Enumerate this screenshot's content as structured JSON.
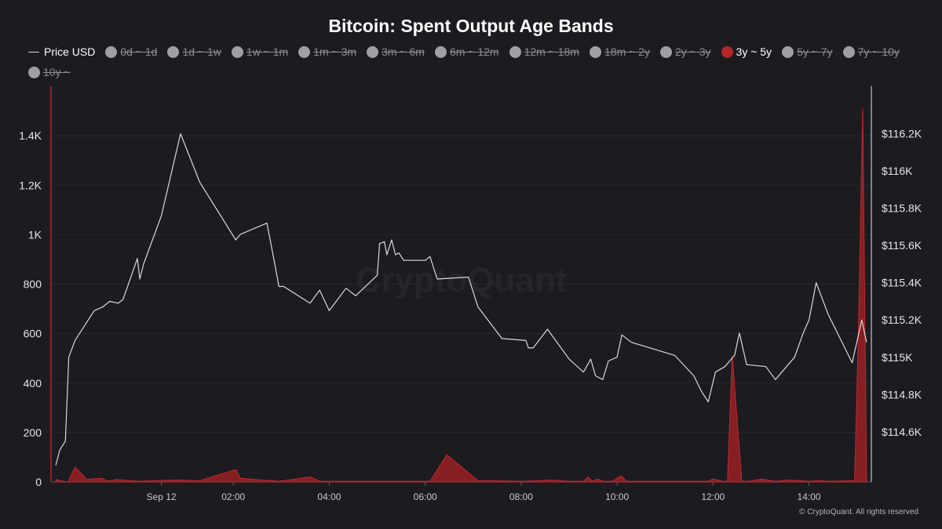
{
  "chart_data": {
    "type": "area",
    "title": "Bitcoin: Spent Output Age Bands",
    "watermark": "CryptoQuant",
    "copyright": "© CryptoQuant. All rights reserved",
    "legend_placement": "top",
    "grid": true,
    "x_ticks": [
      {
        "t": 0.5,
        "label": "Sep 12"
      },
      {
        "t": 2,
        "label": "02:00"
      },
      {
        "t": 4,
        "label": "04:00"
      },
      {
        "t": 6,
        "label": "06:00"
      },
      {
        "t": 8,
        "label": "08:00"
      },
      {
        "t": 10,
        "label": "10:00"
      },
      {
        "t": 12,
        "label": "12:00"
      },
      {
        "t": 14,
        "label": "14:00"
      }
    ],
    "xlim": [
      -1.8,
      15.3
    ],
    "y_left": {
      "ylim": [
        0,
        1600
      ],
      "ticks": [
        0,
        200,
        400,
        600,
        800,
        1000,
        1200,
        1400
      ],
      "tick_labels": [
        "0",
        "200",
        "400",
        "600",
        "800",
        "1K",
        "1.2K",
        "1.4K"
      ]
    },
    "y_right": {
      "ylim": [
        114330,
        116455
      ],
      "ticks": [
        114600,
        114800,
        115000,
        115200,
        115400,
        115600,
        115800,
        116000,
        116200
      ],
      "tick_labels": [
        "$114.6K",
        "$114.8K",
        "$115K",
        "$115.2K",
        "$115.4K",
        "$115.6K",
        "$115.8K",
        "$116K",
        "$116.2K"
      ]
    },
    "legend": [
      {
        "name": "Price USD",
        "marker": "line",
        "active": true,
        "color": "#d9d9d9"
      },
      {
        "name": "0d ~ 1d",
        "marker": "dot",
        "active": false,
        "color": "#a09fa6"
      },
      {
        "name": "1d ~ 1w",
        "marker": "dot",
        "active": false,
        "color": "#a09fa6"
      },
      {
        "name": "1w ~ 1m",
        "marker": "dot",
        "active": false,
        "color": "#a09fa6"
      },
      {
        "name": "1m ~ 3m",
        "marker": "dot",
        "active": false,
        "color": "#a09fa6"
      },
      {
        "name": "3m ~ 6m",
        "marker": "dot",
        "active": false,
        "color": "#a09fa6"
      },
      {
        "name": "6m ~ 12m",
        "marker": "dot",
        "active": false,
        "color": "#a09fa6"
      },
      {
        "name": "12m ~ 18m",
        "marker": "dot",
        "active": false,
        "color": "#a09fa6"
      },
      {
        "name": "18m ~ 2y",
        "marker": "dot",
        "active": false,
        "color": "#a09fa6"
      },
      {
        "name": "2y ~ 3y",
        "marker": "dot",
        "active": false,
        "color": "#a09fa6"
      },
      {
        "name": "3y ~ 5y",
        "marker": "dot",
        "active": true,
        "color": "#b3262b"
      },
      {
        "name": "5y ~ 7y",
        "marker": "dot",
        "active": false,
        "color": "#a09fa6"
      },
      {
        "name": "7y ~ 10y",
        "marker": "dot",
        "active": false,
        "color": "#a09fa6"
      },
      {
        "name": "10y ~",
        "marker": "dot",
        "active": false,
        "color": "#a09fa6"
      }
    ],
    "series": [
      {
        "name": "Price USD",
        "axis": "right",
        "color": "#d9d9d9",
        "x": [
          -1.7,
          -1.62,
          -1.5,
          -1.43,
          -1.3,
          -0.9,
          -0.72,
          -0.58,
          -0.4,
          -0.3,
          0.0,
          0.05,
          0.13,
          0.5,
          0.9,
          1.3,
          2.05,
          2.15,
          2.7,
          2.85,
          2.95,
          3.05,
          3.6,
          3.8,
          4.0,
          4.35,
          4.55,
          5.0,
          5.05,
          5.15,
          5.2,
          5.3,
          5.38,
          5.45,
          5.55,
          6.0,
          6.1,
          6.25,
          6.9,
          7.1,
          7.6,
          8.1,
          8.15,
          8.25,
          8.55,
          9.0,
          9.3,
          9.45,
          9.55,
          9.7,
          9.82,
          10.0,
          10.1,
          10.3,
          11.2,
          11.6,
          11.75,
          11.9,
          12.05,
          12.25,
          12.45,
          12.55,
          12.7,
          13.1,
          13.3,
          13.7,
          13.88,
          14.0,
          14.15,
          14.4,
          14.9,
          15.1,
          15.2
        ],
        "y": [
          114420,
          114500,
          114550,
          115000,
          115090,
          115250,
          115270,
          115300,
          115290,
          115310,
          115530,
          115420,
          115500,
          115760,
          116200,
          115940,
          115630,
          115660,
          115720,
          115520,
          115380,
          115380,
          115290,
          115360,
          115250,
          115370,
          115330,
          115440,
          115610,
          115620,
          115550,
          115630,
          115550,
          115560,
          115520,
          115520,
          115540,
          115420,
          115430,
          115270,
          115100,
          115090,
          115050,
          115050,
          115150,
          114990,
          114920,
          114990,
          114900,
          114880,
          114980,
          115000,
          115120,
          115080,
          115010,
          114900,
          114820,
          114760,
          114920,
          114950,
          115010,
          115130,
          114960,
          114950,
          114880,
          115000,
          115130,
          115200,
          115400,
          115230,
          114970,
          115200,
          115080
        ]
      },
      {
        "name": "3y ~ 5y",
        "axis": "left",
        "color": "#b3262b",
        "x": [
          -1.7,
          -1.55,
          -1.45,
          -1.3,
          -1.05,
          -0.75,
          -0.6,
          -0.45,
          0.0,
          0.8,
          1.3,
          2.05,
          2.15,
          2.95,
          3.6,
          3.8,
          4.0,
          5.0,
          5.7,
          6.1,
          6.45,
          7.1,
          7.3,
          8.1,
          8.6,
          9.0,
          9.3,
          9.4,
          9.48,
          9.6,
          9.7,
          9.82,
          9.9,
          10.08,
          10.2,
          11.2,
          11.9,
          12.0,
          12.2,
          12.3,
          12.4,
          12.6,
          12.75,
          13.0,
          13.3,
          13.6,
          14.0,
          14.2,
          14.4,
          14.95,
          15.03,
          15.12,
          15.2
        ],
        "y": [
          10,
          3,
          0,
          60,
          10,
          15,
          3,
          10,
          3,
          8,
          5,
          50,
          15,
          3,
          20,
          3,
          3,
          3,
          3,
          3,
          110,
          5,
          5,
          3,
          8,
          3,
          3,
          20,
          3,
          12,
          3,
          3,
          3,
          25,
          3,
          3,
          3,
          12,
          3,
          3,
          510,
          3,
          3,
          12,
          3,
          8,
          3,
          5,
          3,
          5,
          600,
          1510,
          3
        ]
      }
    ]
  }
}
